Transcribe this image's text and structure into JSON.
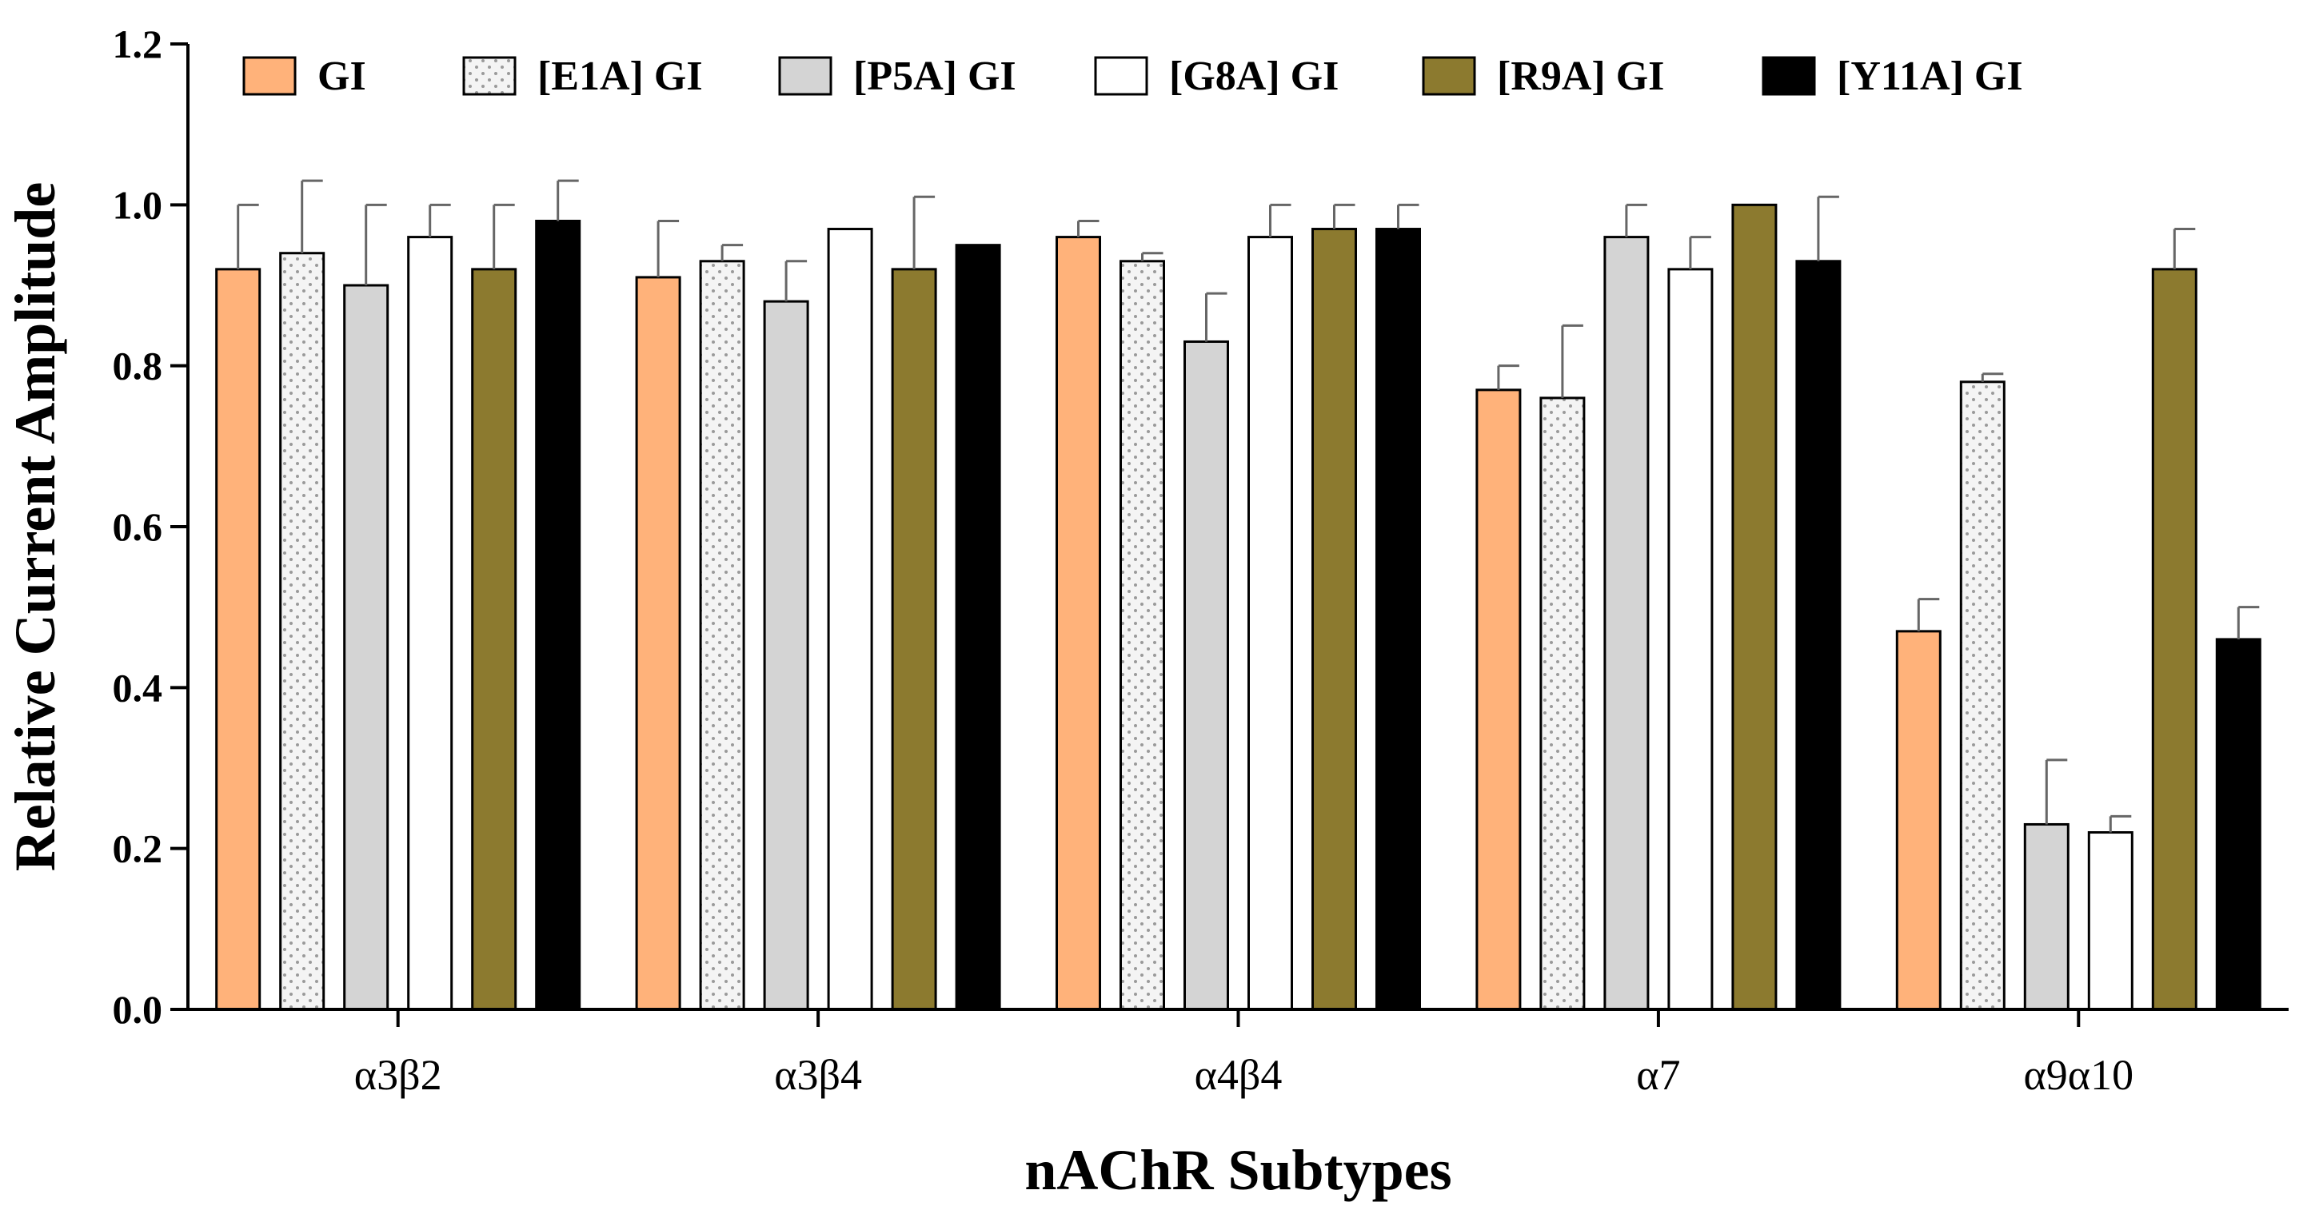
{
  "chart_data": {
    "type": "bar",
    "xlabel": "nAChR Subtypes",
    "ylabel": "Relative Current Amplitude",
    "ylim": [
      0,
      1.2
    ],
    "yticks": [
      "0.0",
      "0.2",
      "0.4",
      "0.6",
      "0.8",
      "1.0",
      "1.2"
    ],
    "legend_position": "top",
    "categories": [
      "α3β2",
      "α3β4",
      "α4β4",
      "α7",
      "α9α10"
    ],
    "series": [
      {
        "name": "GI",
        "color": "#FFB27A",
        "pattern": "solid",
        "values": [
          0.92,
          0.91,
          0.96,
          0.77,
          0.47
        ],
        "errors": [
          0.08,
          0.07,
          0.02,
          0.03,
          0.04
        ]
      },
      {
        "name": "[E1A] GI",
        "color": "#F2F2F2",
        "pattern": "dots",
        "values": [
          0.94,
          0.93,
          0.93,
          0.76,
          0.78
        ],
        "errors": [
          0.09,
          0.02,
          0.01,
          0.09,
          0.01
        ]
      },
      {
        "name": "[P5A] GI",
        "color": "#D4D4D4",
        "pattern": "solid",
        "values": [
          0.9,
          0.88,
          0.83,
          0.96,
          0.23
        ],
        "errors": [
          0.1,
          0.05,
          0.06,
          0.04,
          0.08
        ]
      },
      {
        "name": "[G8A] GI",
        "color": "#FFFFFF",
        "pattern": "solid",
        "values": [
          0.96,
          0.97,
          0.96,
          0.92,
          0.22
        ],
        "errors": [
          0.04,
          0.0,
          0.04,
          0.04,
          0.02
        ]
      },
      {
        "name": "[R9A] GI",
        "color": "#8C7A2F",
        "pattern": "solid",
        "values": [
          0.92,
          0.92,
          0.97,
          1.0,
          0.92
        ],
        "errors": [
          0.08,
          0.09,
          0.03,
          0.0,
          0.05
        ]
      },
      {
        "name": "[Y11A] GI",
        "color": "#000000",
        "pattern": "solid",
        "values": [
          0.98,
          0.95,
          0.97,
          0.93,
          0.46
        ],
        "errors": [
          0.05,
          0.0,
          0.03,
          0.08,
          0.04
        ]
      }
    ]
  }
}
